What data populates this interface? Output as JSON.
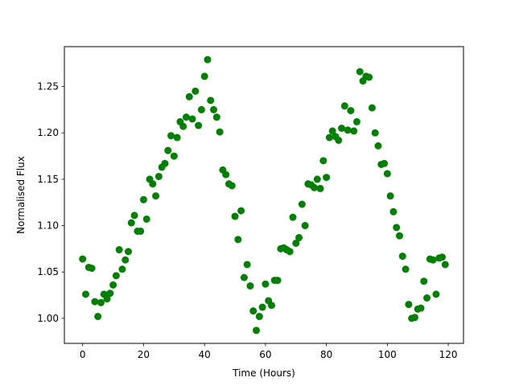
{
  "chart_data": {
    "type": "scatter",
    "title": "",
    "xlabel": "Time (Hours)",
    "ylabel": "Normalised Flux",
    "xlim": [
      -6,
      125
    ],
    "ylim": [
      0.973,
      1.293
    ],
    "xticks": [
      0,
      20,
      40,
      60,
      80,
      100,
      120
    ],
    "xtick_labels": [
      "0",
      "20",
      "40",
      "60",
      "80",
      "100",
      "120"
    ],
    "yticks": [
      1.0,
      1.05,
      1.1,
      1.15,
      1.2,
      1.25
    ],
    "ytick_labels": [
      "1.00",
      "1.05",
      "1.10",
      "1.15",
      "1.20",
      "1.25"
    ],
    "grid": false,
    "marker_color": "#008000",
    "points": [
      [
        0,
        1.064
      ],
      [
        1,
        1.026
      ],
      [
        2,
        1.055
      ],
      [
        3,
        1.054
      ],
      [
        4,
        1.018
      ],
      [
        5,
        1.002
      ],
      [
        6,
        1.017
      ],
      [
        7,
        1.026
      ],
      [
        8,
        1.021
      ],
      [
        9,
        1.027
      ],
      [
        10,
        1.036
      ],
      [
        11,
        1.046
      ],
      [
        12,
        1.074
      ],
      [
        13,
        1.053
      ],
      [
        14,
        1.063
      ],
      [
        15,
        1.072
      ],
      [
        16,
        1.103
      ],
      [
        17,
        1.111
      ],
      [
        18,
        1.094
      ],
      [
        19,
        1.094
      ],
      [
        20,
        1.128
      ],
      [
        21,
        1.107
      ],
      [
        22,
        1.15
      ],
      [
        23,
        1.145
      ],
      [
        24,
        1.132
      ],
      [
        25,
        1.153
      ],
      [
        26,
        1.163
      ],
      [
        27,
        1.167
      ],
      [
        28,
        1.181
      ],
      [
        29,
        1.197
      ],
      [
        30,
        1.175
      ],
      [
        31,
        1.195
      ],
      [
        32,
        1.212
      ],
      [
        33,
        1.207
      ],
      [
        34,
        1.217
      ],
      [
        35,
        1.239
      ],
      [
        36,
        1.215
      ],
      [
        37,
        1.245
      ],
      [
        38,
        1.208
      ],
      [
        39,
        1.225
      ],
      [
        40,
        1.261
      ],
      [
        41,
        1.279
      ],
      [
        42,
        1.235
      ],
      [
        43,
        1.225
      ],
      [
        44,
        1.217
      ],
      [
        45,
        1.201
      ],
      [
        46,
        1.16
      ],
      [
        47,
        1.155
      ],
      [
        48,
        1.145
      ],
      [
        49,
        1.143
      ],
      [
        50,
        1.11
      ],
      [
        51,
        1.085
      ],
      [
        52,
        1.116
      ],
      [
        53,
        1.044
      ],
      [
        54,
        1.058
      ],
      [
        55,
        1.035
      ],
      [
        56,
        1.008
      ],
      [
        57,
        0.987
      ],
      [
        58,
        1.002
      ],
      [
        59,
        1.012
      ],
      [
        60,
        1.037
      ],
      [
        61,
        1.019
      ],
      [
        62,
        1.014
      ],
      [
        63,
        1.041
      ],
      [
        64,
        1.041
      ],
      [
        65,
        1.075
      ],
      [
        66,
        1.076
      ],
      [
        67,
        1.074
      ],
      [
        68,
        1.072
      ],
      [
        69,
        1.109
      ],
      [
        70,
        1.081
      ],
      [
        71,
        1.087
      ],
      [
        72,
        1.123
      ],
      [
        73,
        1.1
      ],
      [
        74,
        1.145
      ],
      [
        75,
        1.144
      ],
      [
        76,
        1.141
      ],
      [
        77,
        1.15
      ],
      [
        78,
        1.14
      ],
      [
        79,
        1.17
      ],
      [
        80,
        1.152
      ],
      [
        81,
        1.195
      ],
      [
        82,
        1.202
      ],
      [
        83,
        1.196
      ],
      [
        84,
        1.192
      ],
      [
        85,
        1.205
      ],
      [
        86,
        1.229
      ],
      [
        87,
        1.203
      ],
      [
        88,
        1.224
      ],
      [
        89,
        1.202
      ],
      [
        90,
        1.212
      ],
      [
        91,
        1.266
      ],
      [
        92,
        1.256
      ],
      [
        93,
        1.261
      ],
      [
        94,
        1.26
      ],
      [
        95,
        1.227
      ],
      [
        96,
        1.2
      ],
      [
        97,
        1.186
      ],
      [
        98,
        1.166
      ],
      [
        99,
        1.167
      ],
      [
        100,
        1.156
      ],
      [
        101,
        1.132
      ],
      [
        102,
        1.115
      ],
      [
        103,
        1.098
      ],
      [
        104,
        1.089
      ],
      [
        105,
        1.067
      ],
      [
        106,
        1.053
      ],
      [
        107,
        1.015
      ],
      [
        108,
        1.0
      ],
      [
        109,
        1.001
      ],
      [
        110,
        1.01
      ],
      [
        111,
        1.011
      ],
      [
        112,
        1.04
      ],
      [
        113,
        1.022
      ],
      [
        114,
        1.064
      ],
      [
        115,
        1.063
      ],
      [
        116,
        1.026
      ],
      [
        117,
        1.065
      ],
      [
        118,
        1.066
      ],
      [
        119,
        1.058
      ]
    ]
  }
}
